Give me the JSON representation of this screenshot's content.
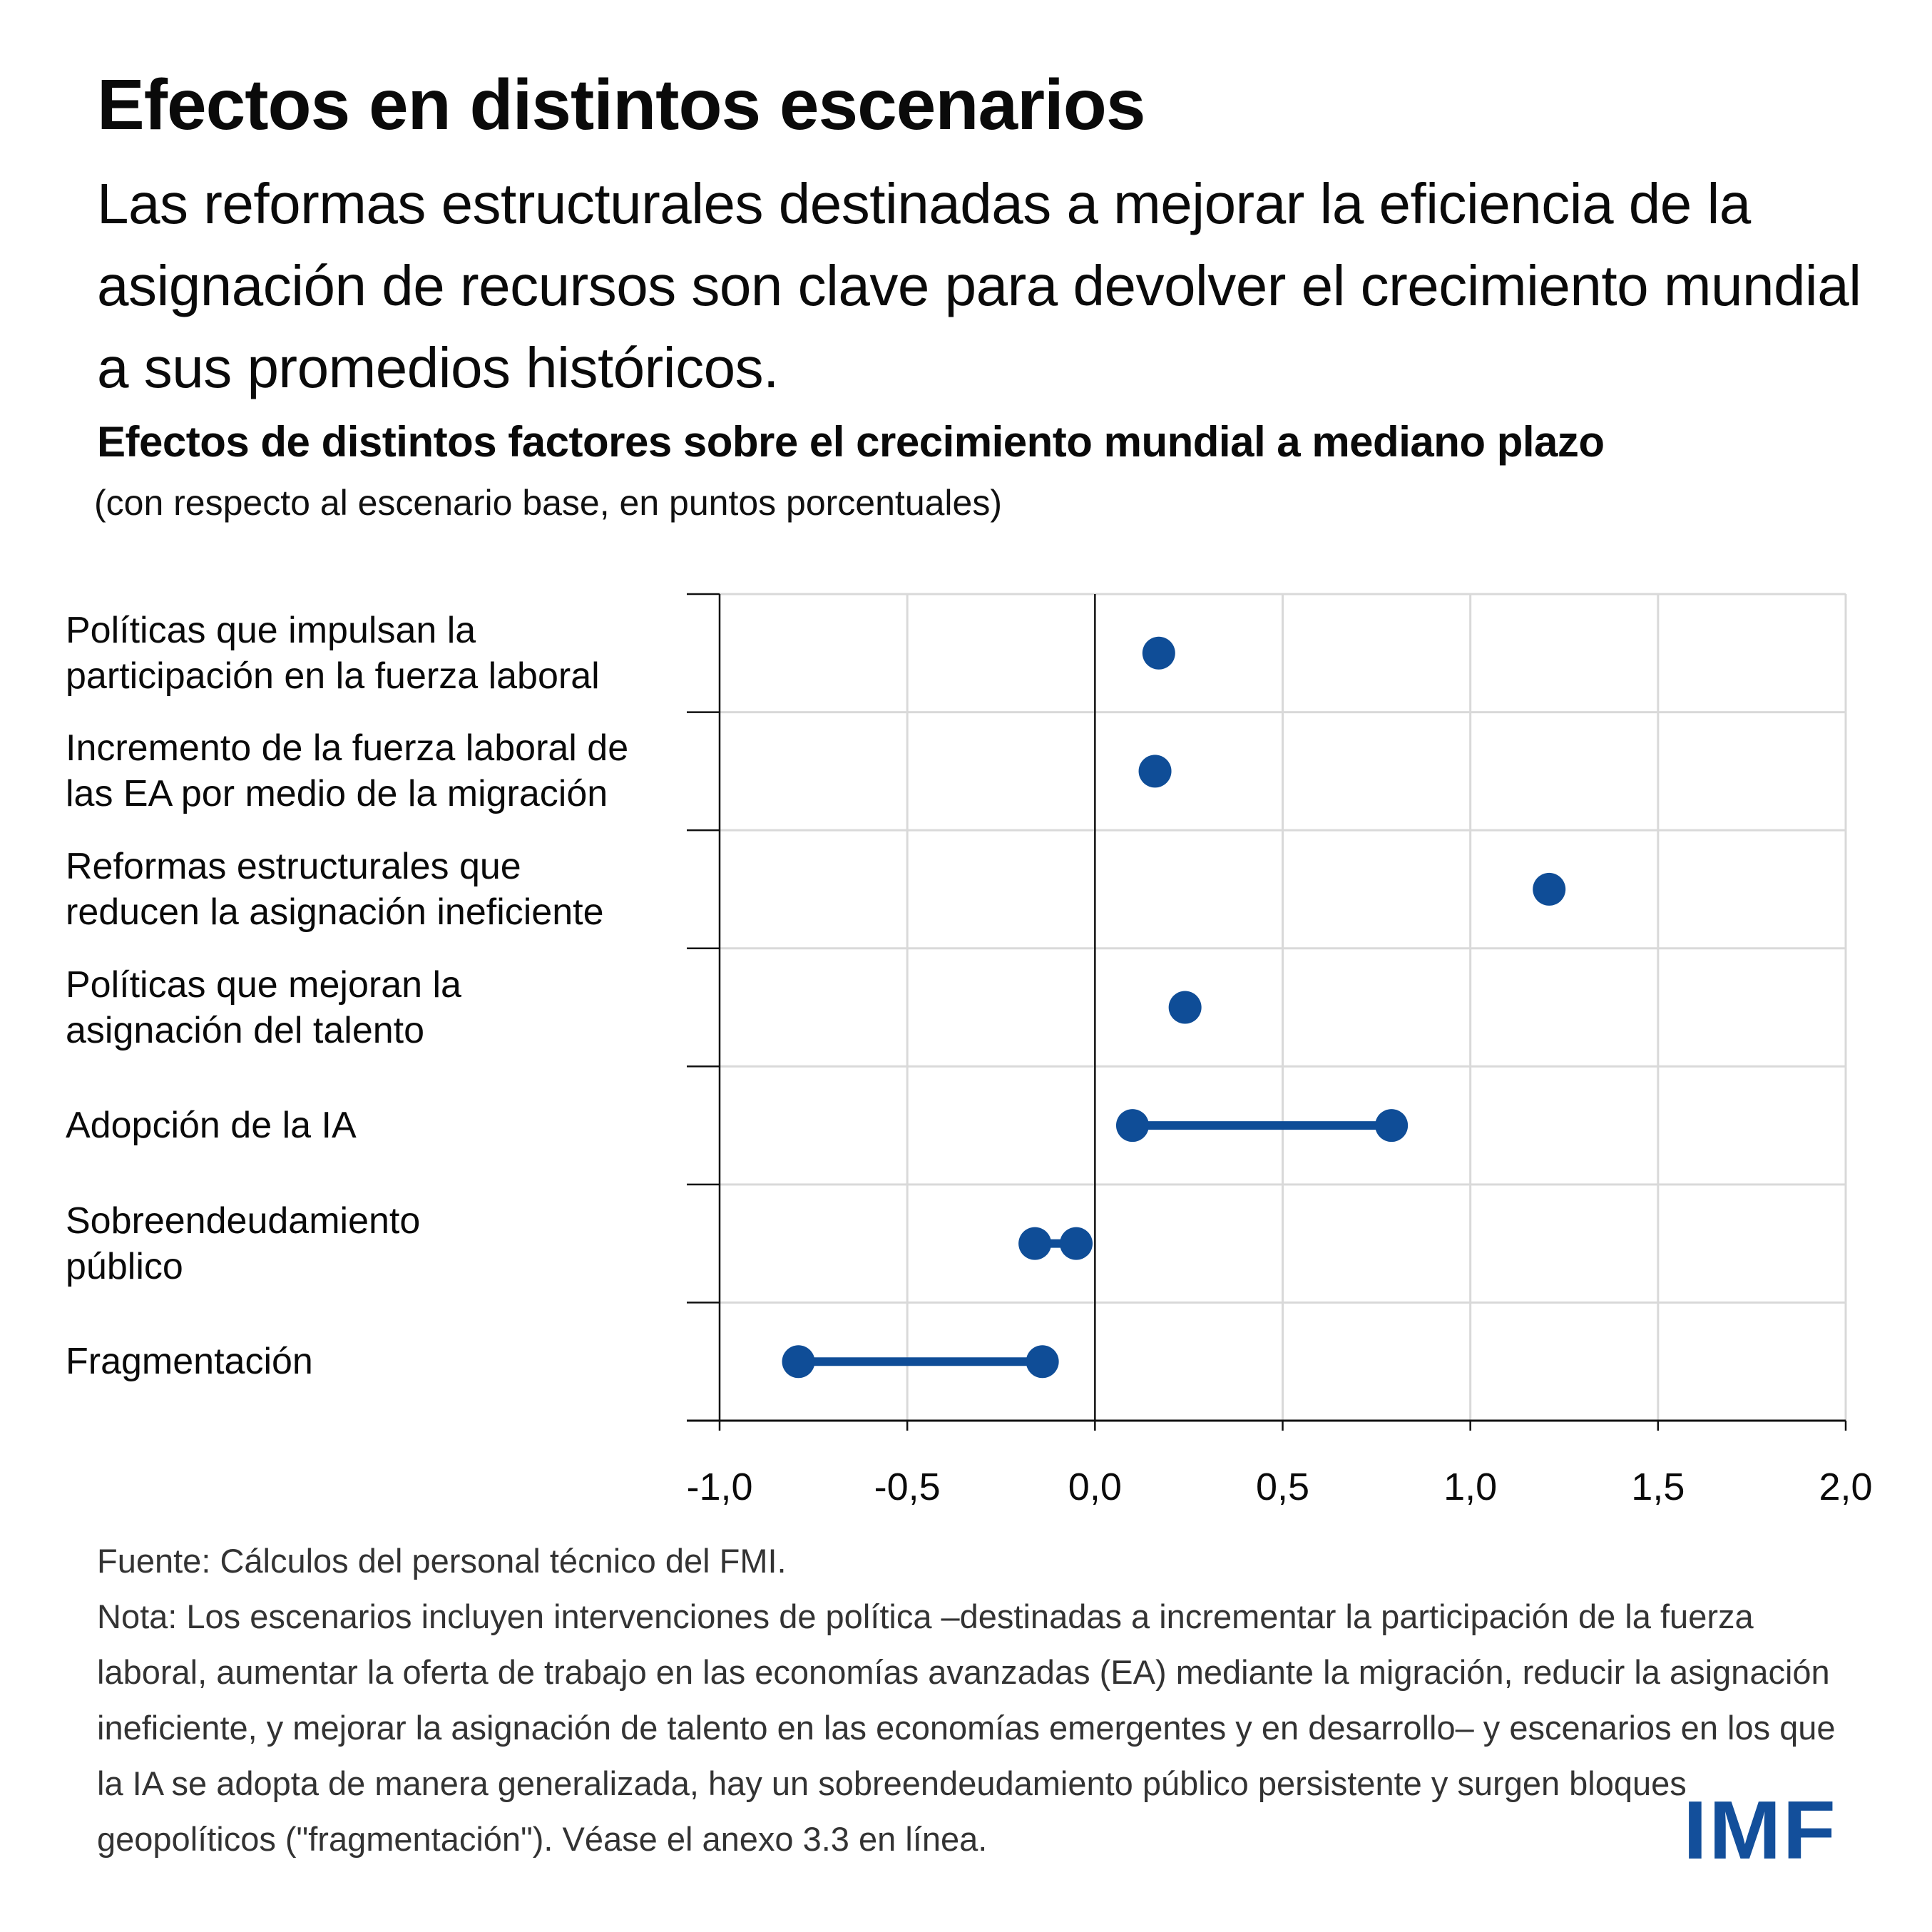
{
  "header": {
    "title": "Efectos en distintos escenarios",
    "subtitle": "Las reformas estructurales destinadas a mejorar la eficiencia de la asignación de recursos son clave para devolver el crecimiento mundial a sus promedios históricos."
  },
  "chart_data": {
    "type": "dot-range",
    "title": "Efectos de distintos factores sobre el crecimiento mundial a mediano plazo",
    "subtitle": "(con respecto al escenario base, en puntos porcentuales)",
    "xlabel": "",
    "ylabel": "",
    "xlim": [
      -1.0,
      2.0
    ],
    "xticks": [
      -1.0,
      -0.5,
      0.0,
      0.5,
      1.0,
      1.5,
      2.0
    ],
    "xtick_labels": [
      "-1,0",
      "-0,5",
      "0,0",
      "0,5",
      "1,0",
      "1,5",
      "2,0"
    ],
    "grid": true,
    "legend": "none",
    "color": "#0f4d97",
    "categories": [
      "Políticas que impulsan la\nparticipación en la fuerza laboral",
      "Incremento de la fuerza laboral de\nlas EA por medio de la migración",
      "Reformas estructurales que\nreducen la asignación ineficiente",
      "Políticas que mejoran la\nasignación del talento",
      "Adopción de la IA",
      "Sobreendeudamiento\npúblico",
      "Fragmentación"
    ],
    "series": [
      {
        "name": "Políticas que impulsan la participación en la fuerza laboral",
        "values": [
          0.17
        ]
      },
      {
        "name": "Incremento de la fuerza laboral de las EA por medio de la migración",
        "values": [
          0.16
        ]
      },
      {
        "name": "Reformas estructurales que reducen la asignación ineficiente",
        "values": [
          1.21
        ]
      },
      {
        "name": "Políticas que mejoran la asignación del talento",
        "values": [
          0.24
        ]
      },
      {
        "name": "Adopción de la IA",
        "values": [
          0.1,
          0.79
        ]
      },
      {
        "name": "Sobreendeudamiento público",
        "values": [
          -0.16,
          -0.05
        ]
      },
      {
        "name": "Fragmentación",
        "values": [
          -0.79,
          -0.14
        ]
      }
    ]
  },
  "footer": {
    "source": "Fuente: Cálculos del personal técnico del FMI.",
    "note": "Nota: Los escenarios incluyen intervenciones de política –destinadas a incrementar la participación de la fuerza laboral, aumentar la oferta de trabajo en las economías avanzadas (EA) mediante la migración, reducir la asignación ineficiente, y mejorar la asignación de talento en las economías emergentes y en desarrollo– y escenarios en los que la IA se adopta de manera generalizada, hay un sobreendeudamiento público persistente y surgen bloques geopolíticos (\"fragmentación\"). Véase el anexo 3.3 en línea."
  },
  "logo": {
    "text": "IMF",
    "color": "#134f9b"
  }
}
